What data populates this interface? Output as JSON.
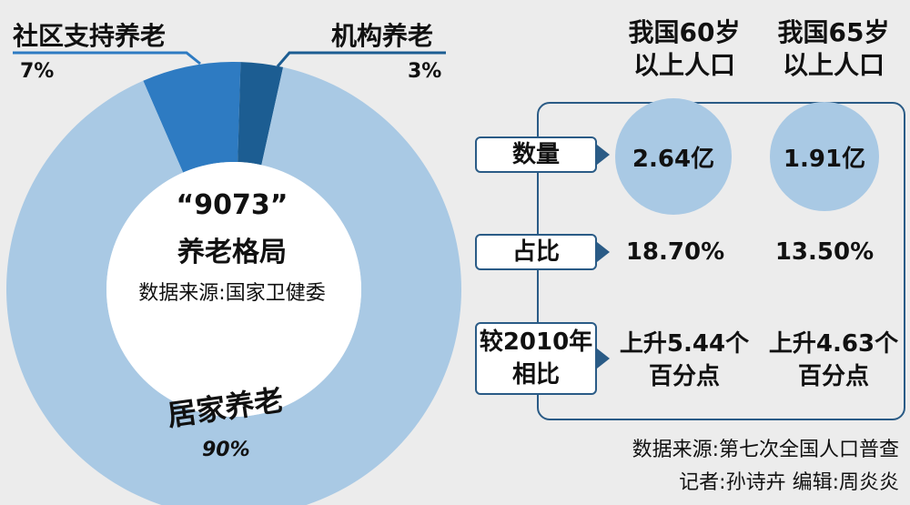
{
  "chart_data": [
    {
      "type": "pie",
      "title": "“9073” 养老格局",
      "subtitle": "数据来源:国家卫健委",
      "categories": [
        "居家养老",
        "社区支持养老",
        "机构养老"
      ],
      "values": [
        90,
        7,
        3
      ],
      "value_labels": [
        "90%",
        "7%",
        "3%"
      ],
      "colors": [
        "#a9c9e4",
        "#2e7bc2",
        "#1c5d92"
      ]
    },
    {
      "type": "table",
      "columns": [
        {
          "line1": "我国60岁",
          "line2": "以上人口"
        },
        {
          "line1": "我国65岁",
          "line2": "以上人口"
        }
      ],
      "rows": [
        {
          "label": "数量",
          "values": [
            "2.64亿",
            "1.91亿"
          ]
        },
        {
          "label": "占比",
          "values": [
            "18.70%",
            "13.50%"
          ]
        },
        {
          "label_line1": "较2010年",
          "label_line2": "相比",
          "values": [
            {
              "line1": "上升5.44个",
              "line2": "百分点"
            },
            {
              "line1": "上升4.63个",
              "line2": "百分点"
            }
          ]
        }
      ]
    }
  ],
  "donut_center": {
    "title_line1": "“9073”",
    "title_line2": "养老格局",
    "source": "数据来源:国家卫健委"
  },
  "footer": {
    "source": "数据来源:第七次全国人口普查",
    "credits": "记者:孙诗卉 编辑:周炎炎"
  },
  "colors": {
    "home": "#a9c9e4",
    "community": "#2e7bc2",
    "institution": "#1c5d92",
    "border": "#2a5b86",
    "circle": "#a9c9e4",
    "background": "#ececec"
  }
}
